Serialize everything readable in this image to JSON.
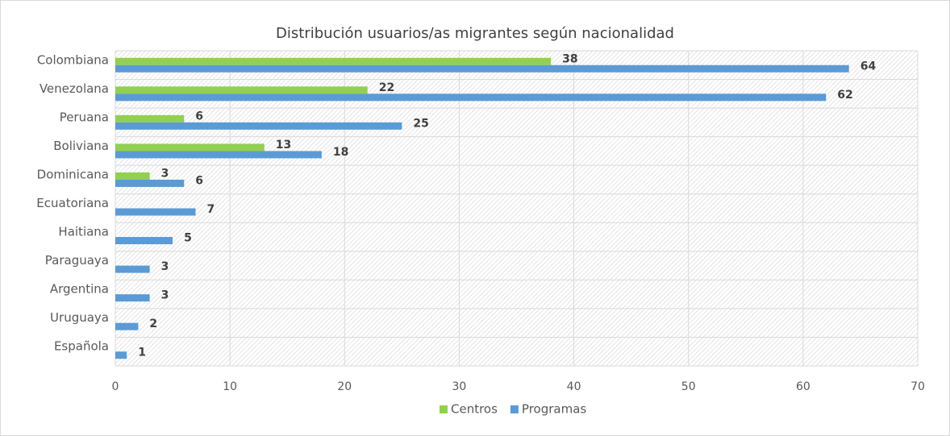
{
  "chart_data": {
    "type": "bar",
    "orientation": "horizontal",
    "title": "Distribución usuarios/as migrantes según nacionalidad",
    "categories": [
      "Colombiana",
      "Venezolana",
      "Peruana",
      "Boliviana",
      "Dominicana",
      "Ecuatoriana",
      "Haitiana",
      "Paraguaya",
      "Argentina",
      "Uruguaya",
      "Española"
    ],
    "series": [
      {
        "name": "Centros",
        "color": "#92d050",
        "values": [
          38,
          22,
          6,
          13,
          3,
          null,
          null,
          null,
          null,
          null,
          null
        ]
      },
      {
        "name": "Programas",
        "color": "#5b9bd5",
        "values": [
          64,
          62,
          25,
          18,
          6,
          7,
          5,
          3,
          3,
          2,
          1
        ]
      }
    ],
    "xlim": [
      0,
      70
    ],
    "xticks": [
      0,
      10,
      20,
      30,
      40,
      50,
      60,
      70
    ],
    "grid": true,
    "legend": "bottom"
  }
}
